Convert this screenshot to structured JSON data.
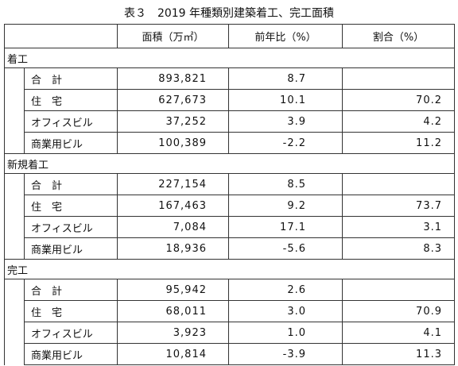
{
  "title": "表３　2019 年種類別建築着工、完工面積",
  "header": [
    "面積（万㎡）",
    "前年比（%）",
    "割合（%）"
  ],
  "sections": [
    {
      "name": "着工",
      "rows": [
        {
          "label": "合　計",
          "area": "893,821",
          "yoy": "8.7",
          "share": null
        },
        {
          "label": "住　宅",
          "area": "627,673",
          "yoy": "10.1",
          "share": "70.2"
        },
        {
          "label": "オフィスビル",
          "area": "37,252",
          "yoy": "3.9",
          "share": "4.2"
        },
        {
          "label": "商業用ビル",
          "area": "100,389",
          "yoy": "-2.2",
          "share": "11.2"
        }
      ]
    },
    {
      "name": "新規着工",
      "rows": [
        {
          "label": "合　計",
          "area": "227,154",
          "yoy": "8.5",
          "share": null
        },
        {
          "label": "住　宅",
          "area": "167,463",
          "yoy": "9.2",
          "share": "73.7"
        },
        {
          "label": "オフィスビル",
          "area": "7,084",
          "yoy": "17.1",
          "share": "3.1"
        },
        {
          "label": "商業用ビル",
          "area": "18,936",
          "yoy": "-5.6",
          "share": "8.3"
        }
      ]
    },
    {
      "name": "完工",
      "rows": [
        {
          "label": "合　計",
          "area": "95,942",
          "yoy": "2.6",
          "share": null
        },
        {
          "label": "住　宅",
          "area": "68,011",
          "yoy": "3.0",
          "share": "70.9"
        },
        {
          "label": "オフィスビル",
          "area": "3,923",
          "yoy": "1.0",
          "share": "4.1"
        },
        {
          "label": "商業用ビル",
          "area": "10,814",
          "yoy": "-3.9",
          "share": "11.3"
        }
      ]
    }
  ]
}
